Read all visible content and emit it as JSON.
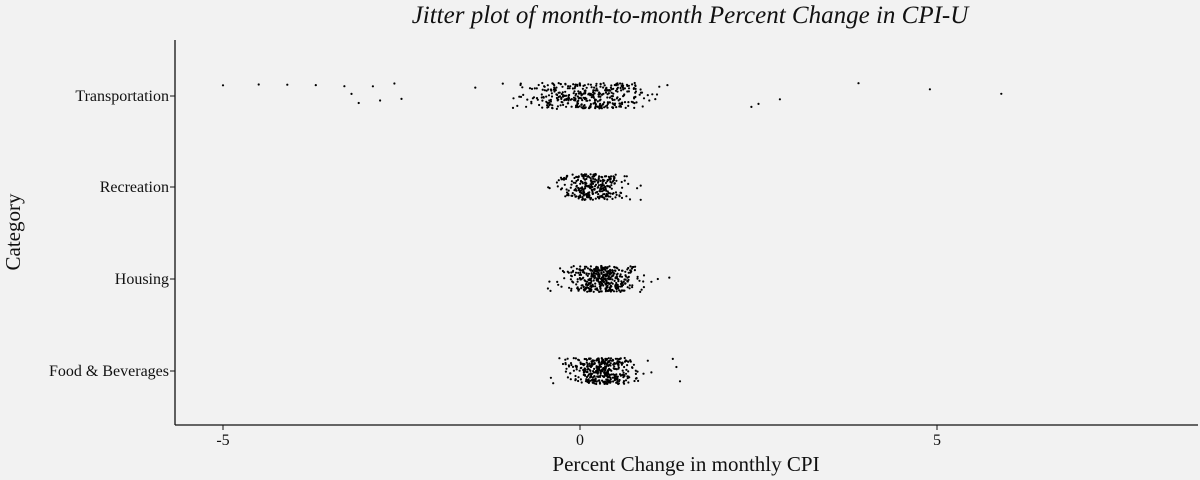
{
  "chart_data": {
    "type": "scatter",
    "title": "Jitter plot of month-to-month Percent Change in CPI-U",
    "xlabel": "Percent Change in monthly CPI",
    "ylabel": "Category",
    "xlim": [
      -6.3,
      8.7
    ],
    "x_ticks": [
      -5,
      0,
      5
    ],
    "x_tick_labels": [
      "-5",
      "0",
      "5"
    ],
    "categories": [
      "Food & Beverages",
      "Housing",
      "Recreation",
      "Transportation"
    ],
    "grid": false,
    "legend": "none",
    "point_color": "#000000",
    "background": "#f2f2f2",
    "series": [
      {
        "category": "Transportation",
        "count": 400,
        "core_range": [
          -0.8,
          1.0
        ],
        "range": [
          -5.0,
          5.9
        ],
        "outliers": [
          -5.0,
          -4.5,
          -4.1,
          -3.7,
          -3.3,
          -3.2,
          -3.1,
          -2.9,
          -2.8,
          -2.6,
          -2.5,
          2.4,
          2.5,
          2.8,
          3.9,
          4.9,
          5.9
        ]
      },
      {
        "category": "Recreation",
        "count": 300,
        "core_range": [
          -0.3,
          0.6
        ],
        "range": [
          -0.55,
          0.85
        ],
        "outliers": [
          0.65,
          0.8,
          0.85
        ]
      },
      {
        "category": "Housing",
        "count": 400,
        "core_range": [
          -0.2,
          0.8
        ],
        "range": [
          -0.45,
          1.25
        ],
        "outliers": [
          1.0,
          1.25
        ]
      },
      {
        "category": "Food & Beverages",
        "count": 400,
        "core_range": [
          -0.15,
          0.75
        ],
        "range": [
          -0.45,
          1.4
        ],
        "outliers": [
          0.95,
          1.0,
          1.3,
          1.35,
          1.4
        ]
      }
    ]
  }
}
